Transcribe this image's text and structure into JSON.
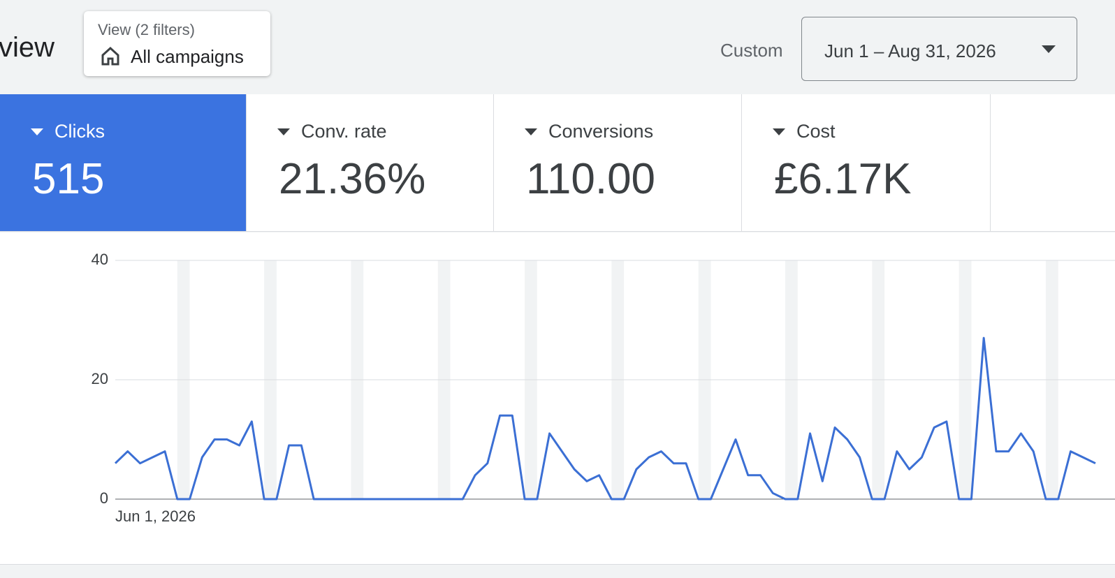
{
  "header": {
    "title": "view",
    "filter_label": "View (2 filters)",
    "filter_value": "All campaigns",
    "range_label": "Custom",
    "date_range": "Jun 1 – Aug 31, 2026"
  },
  "metrics": [
    {
      "name": "Clicks",
      "value": "515"
    },
    {
      "name": "Conv. rate",
      "value": "21.36%"
    },
    {
      "name": "Conversions",
      "value": "110.00"
    },
    {
      "name": "Cost",
      "value": "£6.17K"
    }
  ],
  "chart_data": {
    "type": "line",
    "color": "#3b6fd4",
    "categories": [
      "Jun 1, 2026",
      null,
      null,
      null,
      null,
      null,
      null,
      null,
      null,
      null,
      null,
      null,
      null,
      null,
      null,
      null,
      null,
      null,
      null,
      null,
      null,
      null,
      null,
      null,
      null,
      null,
      null,
      null,
      null,
      null,
      null,
      null,
      null,
      null,
      null,
      null,
      null,
      null,
      null,
      null,
      null,
      null,
      null,
      null,
      null,
      null,
      null,
      null,
      null,
      null,
      null,
      null,
      null,
      null,
      null,
      null,
      null,
      null,
      null,
      null,
      null,
      null,
      null,
      null,
      null,
      null,
      null,
      null,
      null,
      null,
      null,
      null,
      null,
      null,
      null,
      null,
      null,
      null,
      null,
      null
    ],
    "values": [
      6,
      8,
      6,
      7,
      8,
      0,
      0,
      7,
      10,
      10,
      9,
      13,
      0,
      0,
      9,
      9,
      0,
      0,
      0,
      0,
      0,
      0,
      0,
      0,
      0,
      0,
      0,
      0,
      0,
      4,
      6,
      14,
      14,
      0,
      0,
      11,
      8,
      5,
      3,
      4,
      0,
      0,
      5,
      7,
      8,
      6,
      6,
      0,
      0,
      5,
      10,
      4,
      4,
      1,
      0,
      0,
      11,
      3,
      12,
      10,
      7,
      0,
      0,
      8,
      5,
      7,
      12,
      13,
      0,
      0,
      27,
      8,
      8,
      11,
      8,
      0,
      0,
      8,
      7,
      6
    ],
    "ylim": [
      0,
      40
    ],
    "yticks": [
      0,
      20,
      40
    ],
    "grid": true
  }
}
